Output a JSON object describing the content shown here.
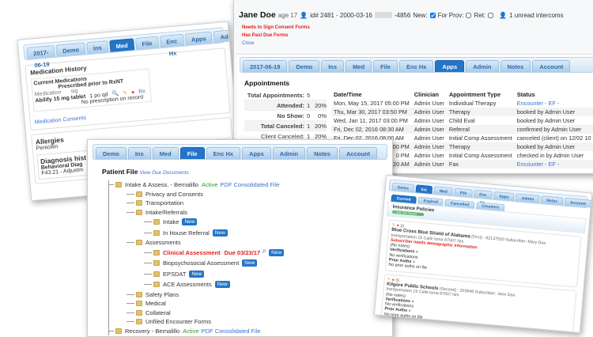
{
  "medication_panel": {
    "tabs": [
      "2017-06-19",
      "Demo",
      "Ins",
      "Med",
      "File",
      "Enc Hx",
      "Apps",
      "Admin"
    ],
    "active_tab": "Med",
    "title": "Medication History",
    "current_label": "Current Medications",
    "prescribed_header": "Prescribed prior to RxNT",
    "col_medication": "Medication",
    "col_sig": "sig",
    "medication": "Abilify 15 mg tablet",
    "sig": "1 po qd",
    "rx_link": "Rx",
    "no_rx": "No prescription on record",
    "consents_link": "Medication Consents",
    "allergies_title": "Allergies",
    "allergy": "Penicillin",
    "diagnosis_title": "Diagnosis hist",
    "diagnosis_line1": "Behavioral Diag",
    "diagnosis_line2": "F43.21 - Adjustm"
  },
  "appointments_panel": {
    "patient_name": "Jane Doe",
    "age": "age 17",
    "id_text": "id# 2481 - 2000-03-16",
    "id_suffix": "-4856",
    "new_label": "New:",
    "for_prov_label": "For Prov:",
    "ret_label": "Ret:",
    "intercoms": "1 unread intercoms",
    "alerts": [
      "Needs to Sign Consent Forms",
      "Has Past Due Forms"
    ],
    "close_link": "Close",
    "tabs": [
      "2017-06-19",
      "Demo",
      "Ins",
      "Med",
      "File",
      "Enc Hx",
      "Apps",
      "Admin",
      "Notes",
      "Account"
    ],
    "active_tab": "Apps",
    "section_title": "Appointments",
    "summary": [
      {
        "label": "Total Appointments:",
        "count": "5",
        "pct": ""
      },
      {
        "label": "Attended:",
        "count": "1",
        "pct": "20%"
      },
      {
        "label": "No Show:",
        "count": "0",
        "pct": "0%"
      },
      {
        "label": "Total Canceled:",
        "count": "1",
        "pct": "20%"
      },
      {
        "label": "Client Canceled:",
        "count": "1",
        "pct": "20%"
      }
    ],
    "columns": [
      "Date/Time",
      "Clinician",
      "Appointment Type",
      "Status"
    ],
    "rows": [
      {
        "date": "Mon, May 15, 2017 05:00 PM",
        "clinician": "Admin User",
        "type": "Individual Therapy",
        "status": "Encounter - EF -",
        "status_link": true
      },
      {
        "date": "Thu, Mar 30, 2017 03:50 PM",
        "clinician": "Admin User",
        "type": "Therapy",
        "status": "booked by Admin User",
        "status_link": false
      },
      {
        "date": "Wed, Jan 11, 2017 03:00 PM",
        "clinician": "Admin User",
        "type": "Child Eval",
        "status": "booked by Admin User",
        "status_link": false
      },
      {
        "date": "Fri, Dec 02, 2016 08:30 AM",
        "clinician": "Admin User",
        "type": "Referral",
        "status": "confirmed by Admin User",
        "status_link": false
      },
      {
        "date": "Fri, Dec 02, 2016 08:00 AM",
        "clinician": "Admin User",
        "type": "Initial Comp Assessment",
        "status": "canceled (client) on 12/02 10",
        "status_link": false
      },
      {
        "date": "00 PM",
        "clinician": "Admin User",
        "type": "Therapy",
        "status": "booked by Admin User",
        "status_link": false
      },
      {
        "date": "0 PM",
        "clinician": "Admin User",
        "type": "Initial Comp Assessment",
        "status": "checked in by Admin User",
        "status_link": false
      },
      {
        "date": "20 AM",
        "clinician": "Admin User",
        "type": "Fax",
        "status": "Encounter - EF -",
        "status_link": true
      }
    ]
  },
  "file_panel": {
    "tabs": [
      "Demo",
      "Ins",
      "Med",
      "File",
      "Enc Hx",
      "Apps",
      "Admin",
      "Notes",
      "Account"
    ],
    "active_tab": "File",
    "title": "Patient File",
    "due_link": "View Due Documents",
    "new_label": "New",
    "tree": [
      {
        "level": 0,
        "label": "Intake & Assess. - Bernalillo",
        "status": "Active",
        "link": "PDF Consolidated File"
      },
      {
        "level": 1,
        "label": "Privacy and Consents"
      },
      {
        "level": 1,
        "label": "Transportation"
      },
      {
        "level": 1,
        "label": "Intake/Referrals"
      },
      {
        "level": 2,
        "label": "Intake",
        "new": true
      },
      {
        "level": 2,
        "label": "In House Referral",
        "new": true
      },
      {
        "level": 1,
        "label": "Assessments"
      },
      {
        "level": 2,
        "label": "Clinical Assessment",
        "due": "Due 03/23/17",
        "flag": "P",
        "new": true,
        "alert": true
      },
      {
        "level": 2,
        "label": "Biopsychosocial Assessment",
        "new": true
      },
      {
        "level": 2,
        "label": "EPSDAT",
        "new": true
      },
      {
        "level": 2,
        "label": "ACE Assessments",
        "new": true
      },
      {
        "level": 1,
        "label": "Safety Plans"
      },
      {
        "level": 1,
        "label": "Medical"
      },
      {
        "level": 1,
        "label": "Collateral"
      },
      {
        "level": 1,
        "label": "Unfiled Encounter Forms"
      },
      {
        "level": 0,
        "label": "Recovery - Bernalillo",
        "status": "Active",
        "link": "PDF Consolidated File"
      }
    ]
  },
  "insurance_panel": {
    "tabs": [
      "Demo",
      "Ins",
      "Med",
      "File",
      "Enc Hx",
      "Apps",
      "Admin",
      "Notes",
      "Account"
    ],
    "active_tab": "Ins",
    "subtabs": [
      "Current",
      "Expired",
      "Cancelled",
      "Counters"
    ],
    "active_subtab": "Current",
    "title": "Insurance Policies",
    "add_button": "+ Add New Insurer",
    "policies": [
      {
        "name": "Blue Cross Blue Shield of Alabama",
        "detail": "(First) : 92137520 Subscriber: Mary Doe",
        "address": "transportation 15 Calle loma 87507 Nm",
        "warning": "Subscriber needs demographic information"
      },
      {
        "name": "Kilgore Public Schools",
        "detail": "(Second) : 203948 Subscriber: Jane Doe",
        "address": "transportation 15 Calle loma 87507 Nm",
        "warning": ""
      }
    ],
    "no_notes": "(No notes)",
    "verif_label": "Verifications",
    "no_verif": "No verifications",
    "auth_label": "Prior Auths",
    "no_auth": "No prior auths on file"
  }
}
